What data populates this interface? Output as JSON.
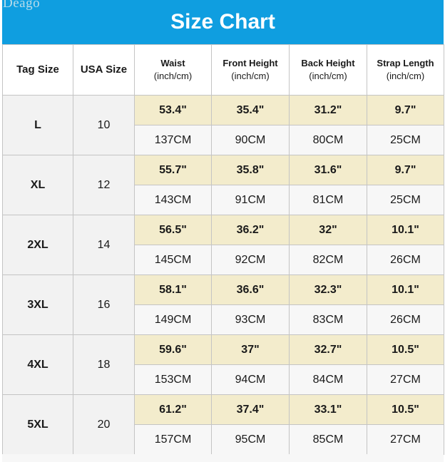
{
  "brand": "Deago",
  "title": "Size Chart",
  "headers": {
    "tag_size": "Tag Size",
    "usa_size": "USA Size",
    "waist": "Waist",
    "front_height": "Front Height",
    "back_height": "Back Height",
    "strap_length": "Strap Length",
    "unit": "(inch/cm)"
  },
  "rows": [
    {
      "tag": "L",
      "usa": "10",
      "inch": [
        "53.4\"",
        "35.4\"",
        "31.2\"",
        "9.7\""
      ],
      "cm": [
        "137CM",
        "90CM",
        "80CM",
        "25CM"
      ]
    },
    {
      "tag": "XL",
      "usa": "12",
      "inch": [
        "55.7\"",
        "35.8\"",
        "31.6\"",
        "9.7\""
      ],
      "cm": [
        "143CM",
        "91CM",
        "81CM",
        "25CM"
      ]
    },
    {
      "tag": "2XL",
      "usa": "14",
      "inch": [
        "56.5\"",
        "36.2\"",
        "32\"",
        "10.1\""
      ],
      "cm": [
        "145CM",
        "92CM",
        "82CM",
        "26CM"
      ]
    },
    {
      "tag": "3XL",
      "usa": "16",
      "inch": [
        "58.1\"",
        "36.6\"",
        "32.3\"",
        "10.1\""
      ],
      "cm": [
        "149CM",
        "93CM",
        "83CM",
        "26CM"
      ]
    },
    {
      "tag": "4XL",
      "usa": "18",
      "inch": [
        "59.6\"",
        "37\"",
        "32.7\"",
        "10.5\""
      ],
      "cm": [
        "153CM",
        "94CM",
        "84CM",
        "27CM"
      ]
    },
    {
      "tag": "5XL",
      "usa": "20",
      "inch": [
        "61.2\"",
        "37.4\"",
        "33.1\"",
        "10.5\""
      ],
      "cm": [
        "157CM",
        "95CM",
        "85CM",
        "27CM"
      ]
    }
  ],
  "colors": {
    "header_bg": "#0f9ee0",
    "inch_row_bg": "#f3eccc",
    "cm_row_bg": "#f7f7f7",
    "size_col_bg": "#f2f2f2"
  }
}
